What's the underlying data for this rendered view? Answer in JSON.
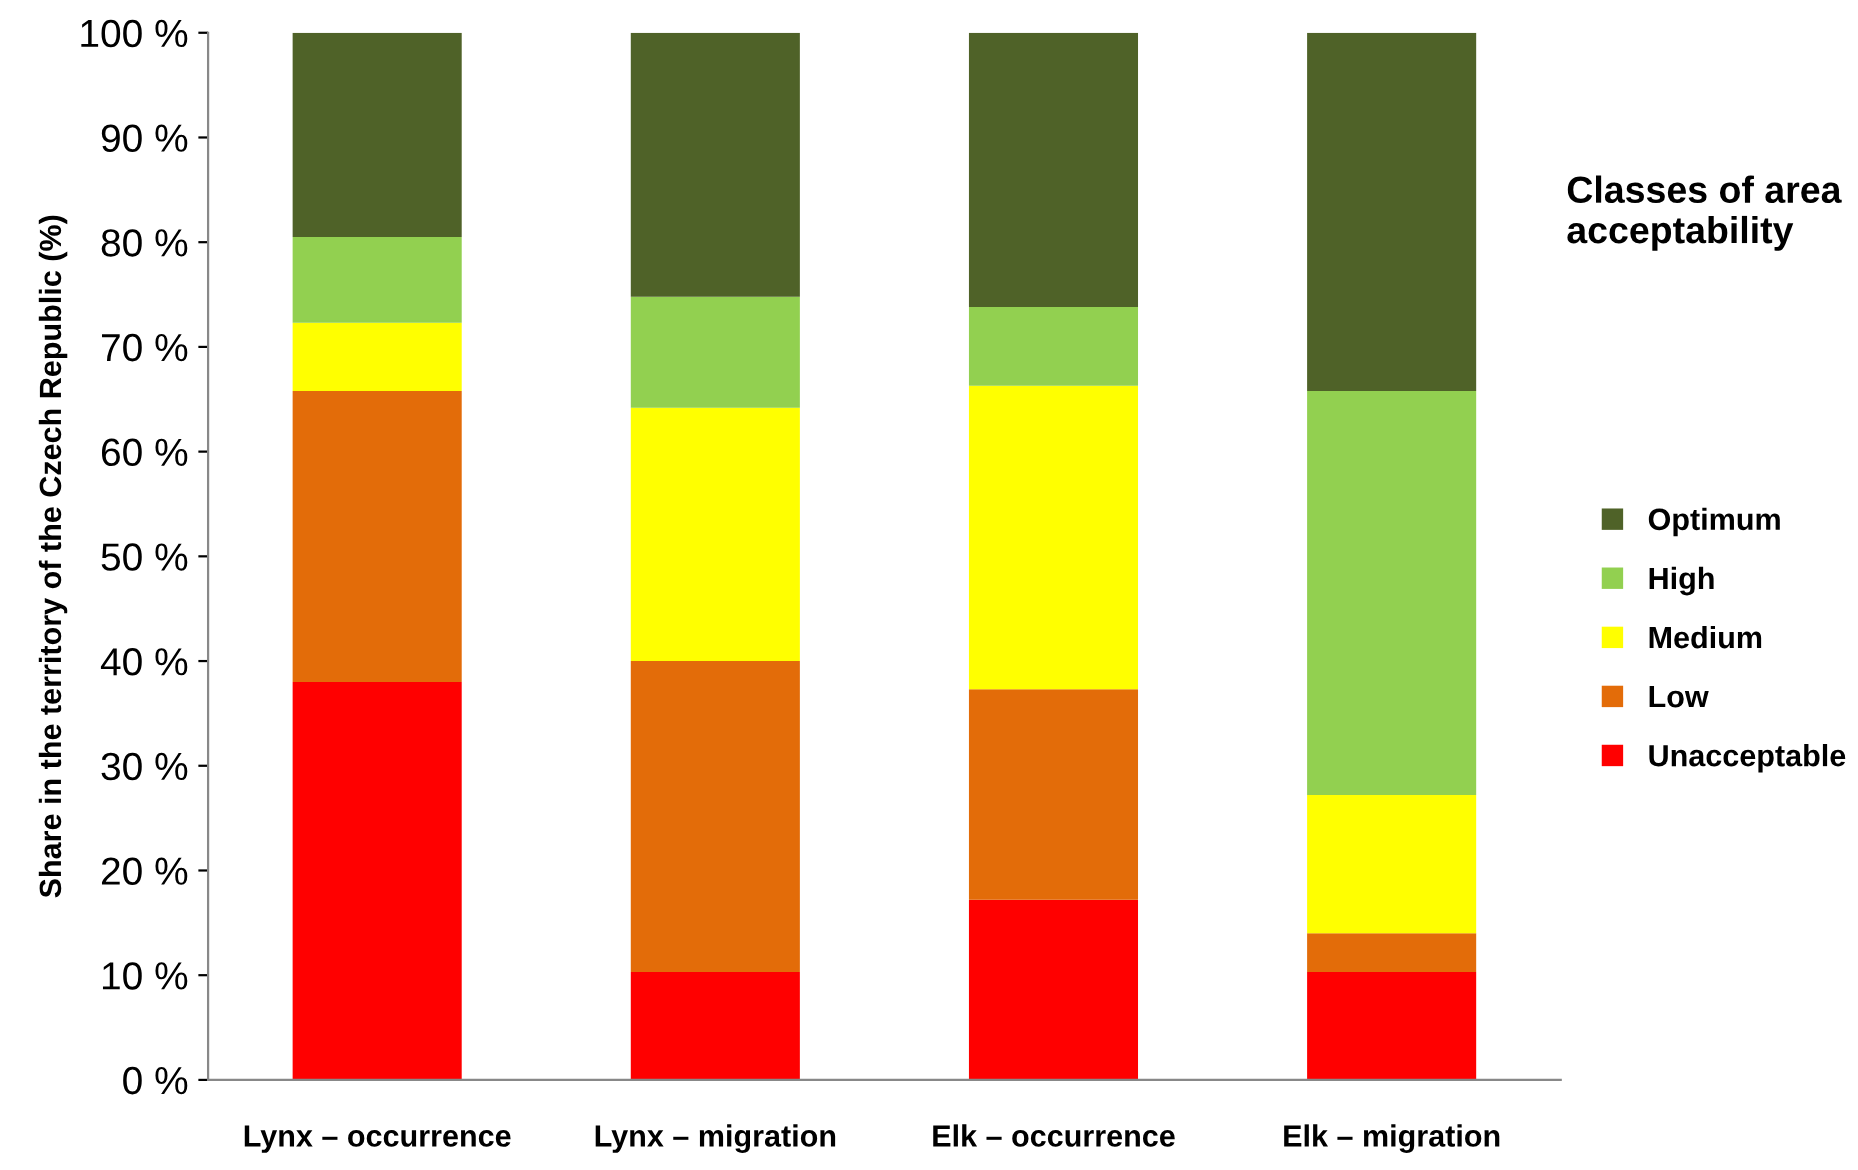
{
  "chart_data": {
    "type": "bar",
    "stacked": true,
    "ylabel": "Share in the territory of the Czech Republic (%)",
    "legend_title": "Classes of area\nacceptability",
    "legend": "right",
    "categories": [
      "Lynx – occurrence",
      "Lynx – migration",
      "Elk – occurrence",
      "Elk – migration"
    ],
    "series": [
      {
        "name": "Unacceptable",
        "color": "#ff0000",
        "values": [
          38.0,
          10.3,
          17.2,
          10.3
        ]
      },
      {
        "name": "Low",
        "color": "#e36c09",
        "values": [
          27.8,
          29.7,
          20.1,
          3.7
        ]
      },
      {
        "name": "Medium",
        "color": "#ffff00",
        "values": [
          6.5,
          24.2,
          29.0,
          13.2
        ]
      },
      {
        "name": "High",
        "color": "#92d050",
        "values": [
          8.2,
          10.6,
          7.5,
          38.6
        ]
      },
      {
        "name": "Optimum",
        "color": "#4f6228",
        "values": [
          19.5,
          25.2,
          26.2,
          34.2
        ]
      }
    ],
    "ylim": [
      0,
      100
    ],
    "yticks": [
      {
        "value": 0,
        "label": "0 %"
      },
      {
        "value": 10,
        "label": "10 %"
      },
      {
        "value": 20,
        "label": "20 %"
      },
      {
        "value": 30,
        "label": "30 %"
      },
      {
        "value": 40,
        "label": "40 %"
      },
      {
        "value": 50,
        "label": "50 %"
      },
      {
        "value": 60,
        "label": "60 %"
      },
      {
        "value": 70,
        "label": "70 %"
      },
      {
        "value": 80,
        "label": "80 %"
      },
      {
        "value": 90,
        "label": "90 %"
      },
      {
        "value": 100,
        "label": "100 %"
      }
    ]
  }
}
